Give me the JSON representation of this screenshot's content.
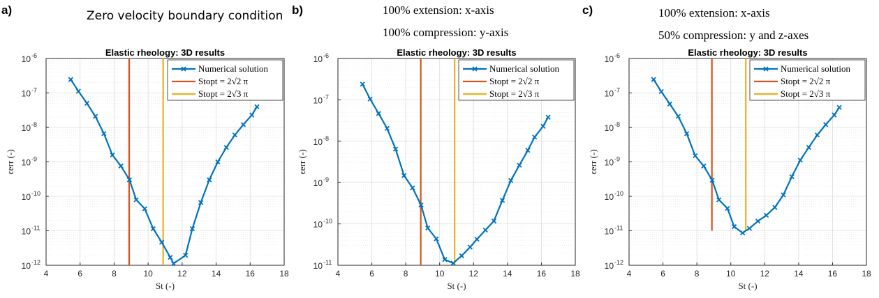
{
  "panels": [
    {
      "letter": "a)",
      "captions": [
        "Zero velocity boundary condition"
      ],
      "caption_style": "sans",
      "chart_data": {
        "type": "line",
        "title": "Elastic rheology: 3D results",
        "xlabel": "St (-)",
        "ylabel": "ϵerr (-)",
        "xlim": [
          4,
          18
        ],
        "ylim_exponents": [
          -12,
          -6
        ],
        "y_scale": "log",
        "grid": true,
        "legend_placement": "top-right",
        "x_ticks": [
          "4",
          "6",
          "8",
          "10",
          "12",
          "14",
          "16",
          "18"
        ],
        "y_ticks": [
          "-6",
          "-7",
          "-8",
          "-9",
          "-10",
          "-11",
          "-12"
        ],
        "series": [
          {
            "name": "Numerical solution",
            "color": "#0072BD",
            "x": [
              5.45,
              5.9,
              6.4,
              6.9,
              7.4,
              7.9,
              8.4,
              8.9,
              9.3,
              9.8,
              10.3,
              10.8,
              11.3,
              11.5,
              12.2,
              12.6,
              13.1,
              13.6,
              14.1,
              14.6,
              15.1,
              15.6,
              16.1,
              16.4
            ],
            "exp": [
              -6.61,
              -6.95,
              -7.3,
              -7.68,
              -8.18,
              -8.8,
              -9.12,
              -9.52,
              -10.1,
              -10.36,
              -10.94,
              -11.33,
              -11.77,
              -11.95,
              -11.71,
              -10.94,
              -10.18,
              -9.52,
              -9.0,
              -8.58,
              -8.22,
              -7.92,
              -7.64,
              -7.4
            ]
          }
        ],
        "vlines": [
          {
            "name": "Stopt = 2√2 π",
            "color": "#D95319",
            "x": 8.886,
            "y_from_exp": -12,
            "y_to_exp": -6
          },
          {
            "name": "Stopt = 2√3 π",
            "color": "#EDB120",
            "x": 10.883,
            "y_from_exp": -12,
            "y_to_exp": -6
          }
        ]
      }
    },
    {
      "letter": "b)",
      "captions": [
        "100% extension: x-axis",
        "100% compression: y-axis"
      ],
      "caption_style": "serif",
      "chart_data": {
        "type": "line",
        "title": "Elastic rheology: 3D results",
        "xlabel": "St (-)",
        "ylabel": "ϵerr (-)",
        "xlim": [
          4,
          18
        ],
        "ylim_exponents": [
          -11,
          -6
        ],
        "y_scale": "log",
        "grid": true,
        "legend_placement": "top-right",
        "x_ticks": [
          "4",
          "6",
          "8",
          "10",
          "12",
          "14",
          "16",
          "18"
        ],
        "y_ticks": [
          "-6",
          "-7",
          "-8",
          "-9",
          "-10",
          "-11"
        ],
        "series": [
          {
            "name": "Numerical solution",
            "color": "#0072BD",
            "x": [
              5.45,
              5.9,
              6.4,
              6.9,
              7.4,
              7.9,
              8.4,
              8.9,
              9.3,
              9.8,
              10.3,
              10.8,
              11.3,
              11.8,
              12.2,
              12.7,
              13.2,
              13.7,
              14.2,
              14.7,
              15.2,
              15.6,
              16.1,
              16.4
            ],
            "exp": [
              -6.62,
              -6.98,
              -7.33,
              -7.69,
              -8.19,
              -8.83,
              -9.13,
              -9.54,
              -10.1,
              -10.36,
              -10.86,
              -10.95,
              -10.77,
              -10.56,
              -10.37,
              -10.15,
              -9.93,
              -9.43,
              -8.95,
              -8.58,
              -8.22,
              -7.9,
              -7.64,
              -7.42
            ]
          }
        ],
        "vlines": [
          {
            "name": "Stopt = 2√2 π",
            "color": "#D95319",
            "x": 8.886,
            "y_from_exp": -11,
            "y_to_exp": -6
          },
          {
            "name": "Stopt = 2√3 π",
            "color": "#EDB120",
            "x": 10.883,
            "y_from_exp": -11,
            "y_to_exp": -6
          }
        ]
      }
    },
    {
      "letter": "c)",
      "captions": [
        "100% extension: x-axis",
        "50% compression: y and z-axes"
      ],
      "caption_style": "serif",
      "chart_data": {
        "type": "line",
        "title": "Elastic rheology: 3D results",
        "xlabel": "St (-)",
        "ylabel": "ϵerr (-)",
        "xlim": [
          4,
          18
        ],
        "ylim_exponents": [
          -12,
          -6
        ],
        "y_scale": "log",
        "grid": true,
        "legend_placement": "top-right",
        "x_ticks": [
          "4",
          "6",
          "8",
          "10",
          "12",
          "14",
          "16",
          "18"
        ],
        "y_ticks": [
          "-6",
          "-7",
          "-8",
          "-9",
          "-10",
          "-11",
          "-12"
        ],
        "series": [
          {
            "name": "Numerical solution",
            "color": "#0072BD",
            "x": [
              5.45,
              5.9,
              6.4,
              6.9,
              7.4,
              7.9,
              8.4,
              8.9,
              9.3,
              9.8,
              10.2,
              10.7,
              11.1,
              11.6,
              12.1,
              12.6,
              13.1,
              13.6,
              14.1,
              14.6,
              15.1,
              15.6,
              16.1,
              16.4
            ],
            "exp": [
              -6.61,
              -6.96,
              -7.32,
              -7.68,
              -8.18,
              -8.82,
              -9.12,
              -9.53,
              -10.1,
              -10.35,
              -10.88,
              -11.06,
              -10.93,
              -10.72,
              -10.55,
              -10.32,
              -9.96,
              -9.43,
              -8.95,
              -8.58,
              -8.22,
              -7.92,
              -7.64,
              -7.42
            ]
          }
        ],
        "vlines": [
          {
            "name": "Stopt = 2√2 π",
            "color": "#D95319",
            "x": 8.886,
            "y_from_exp": -11,
            "y_to_exp": -6
          },
          {
            "name": "Stopt = 2√3 π",
            "color": "#EDB120",
            "x": 10.883,
            "y_from_exp": -11,
            "y_to_exp": -6
          }
        ]
      }
    }
  ]
}
